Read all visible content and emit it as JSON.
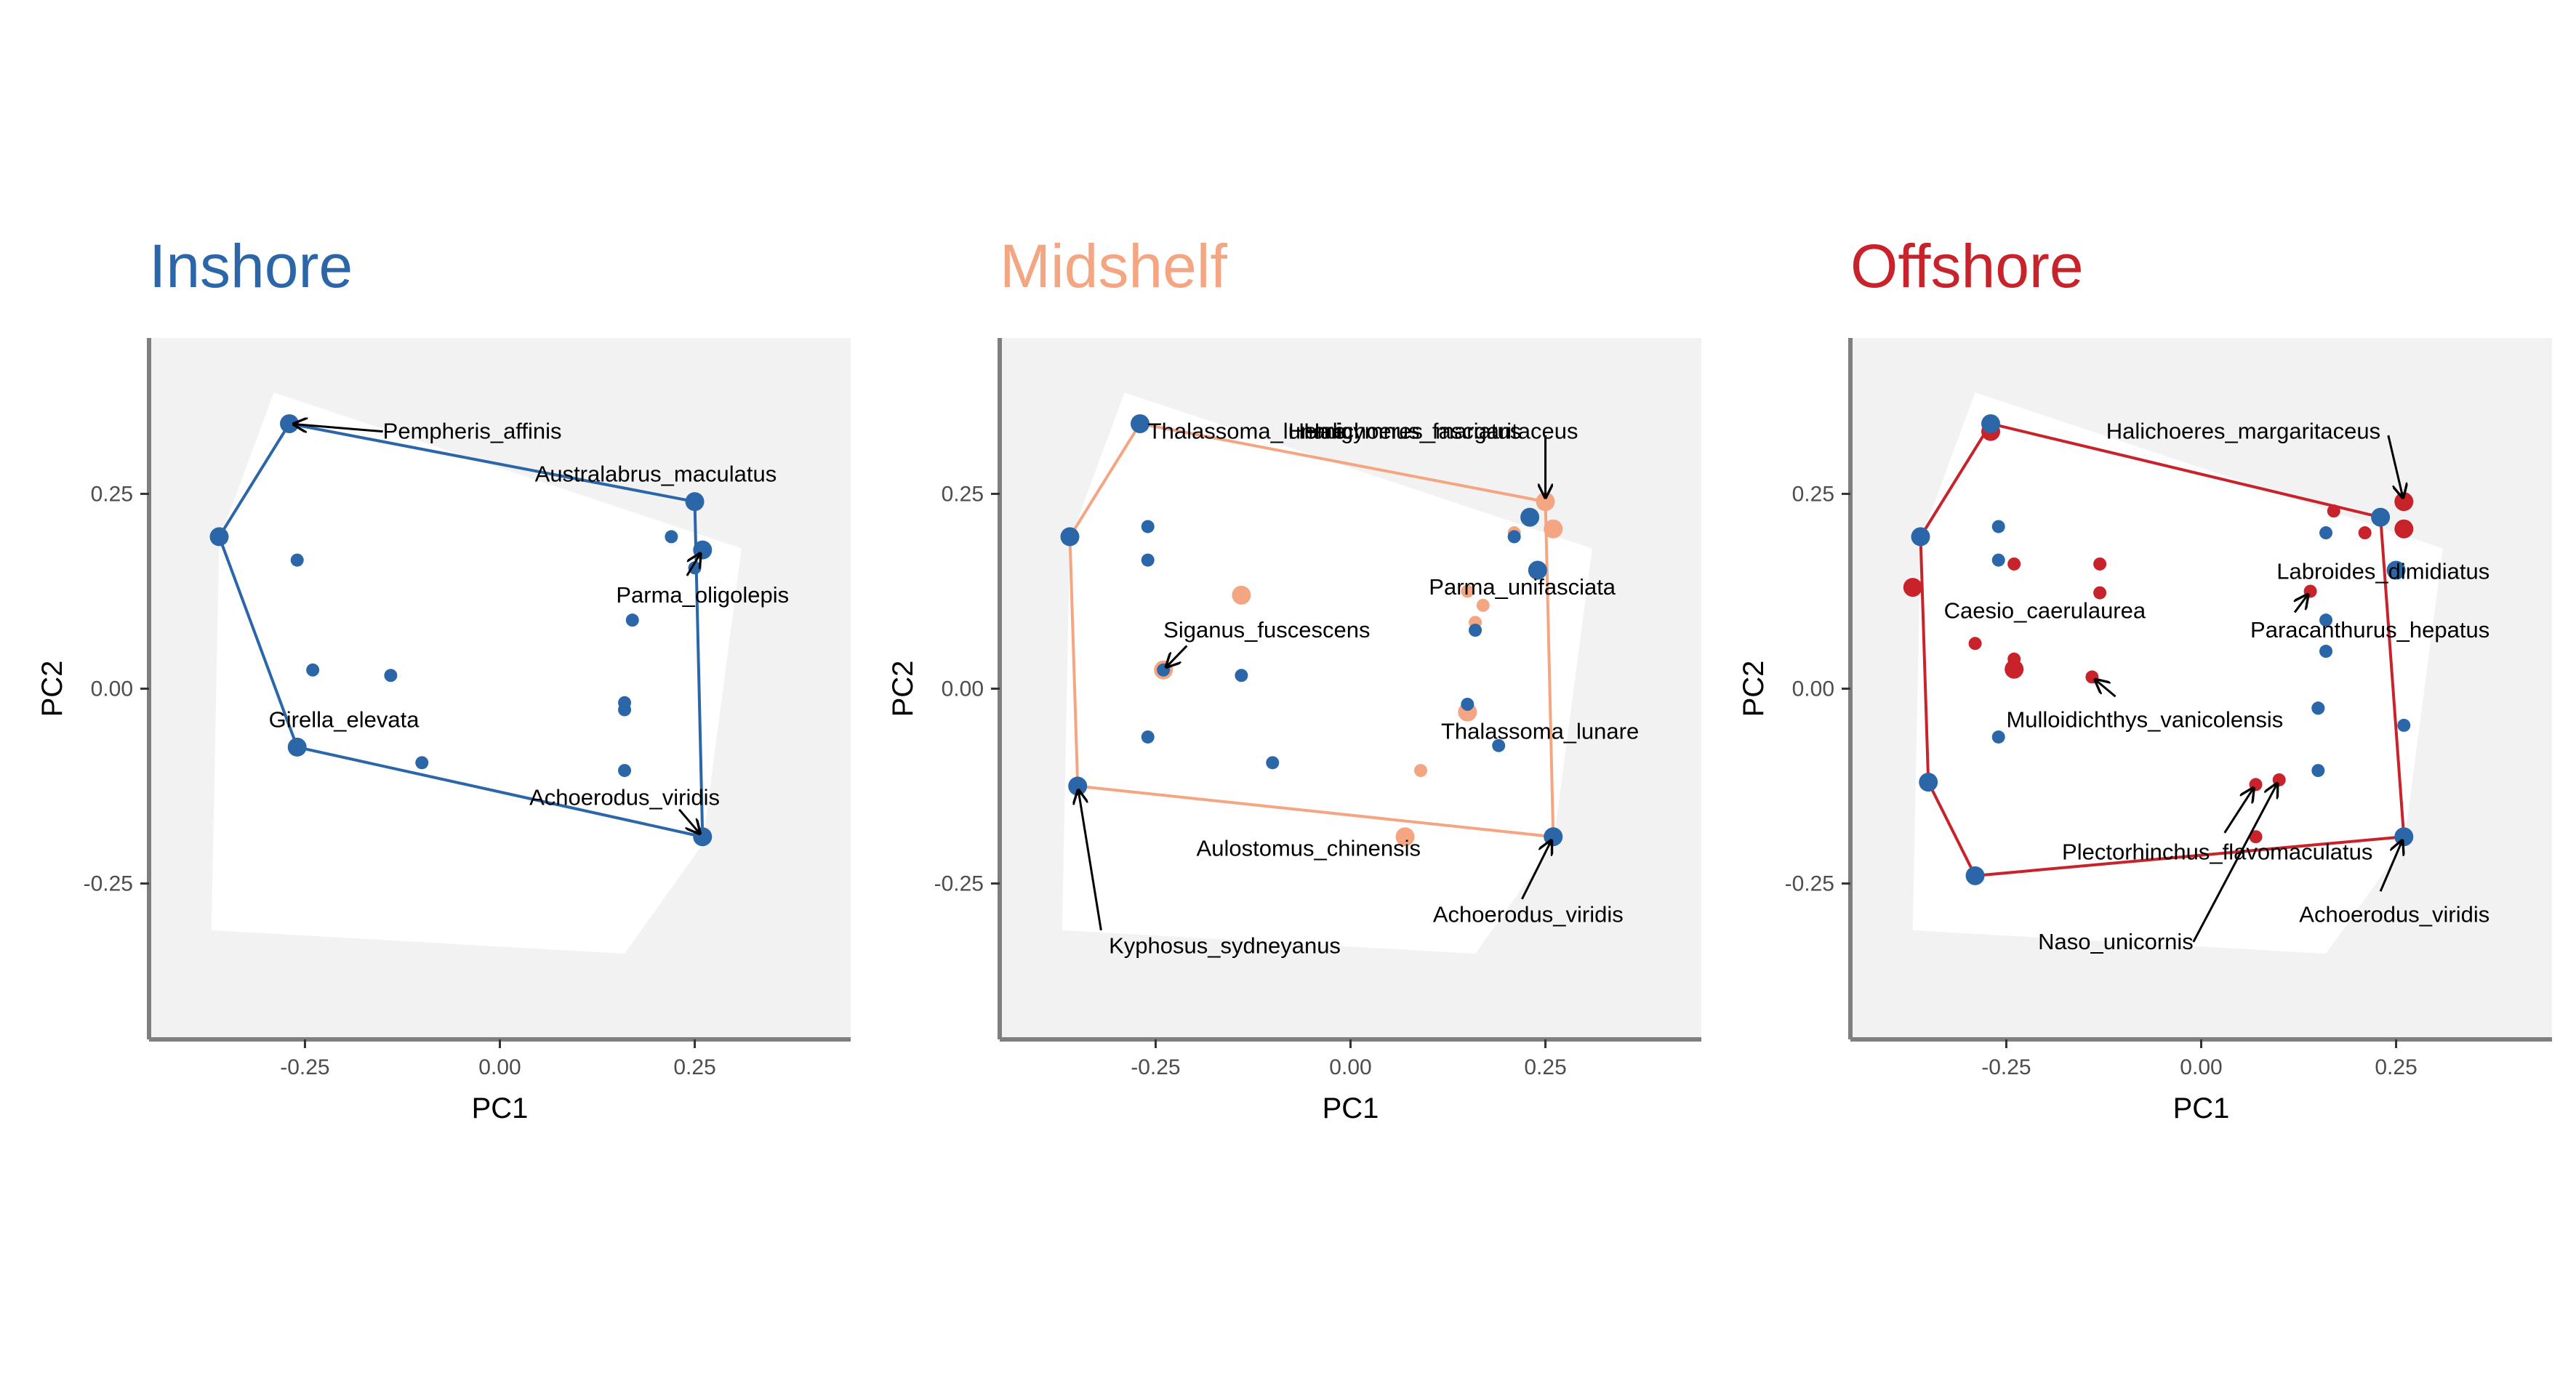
{
  "colors": {
    "inshore": "#2b66a8",
    "midshelf": "#f4a582",
    "offshore": "#c8232b",
    "points_inshore": "#2b66a8",
    "panel_bg": "#f2f2f2",
    "background_hull": "#ffffff",
    "axis_line": "#7f7f7f"
  },
  "chart_data": [
    {
      "type": "scatter",
      "title": "Inshore",
      "title_color": "#2b66a8",
      "hull_color": "#2b66a8",
      "xlabel": "PC1",
      "ylabel": "PC2",
      "xlim": [
        -0.45,
        0.45
      ],
      "ylim": [
        -0.45,
        0.45
      ],
      "xticks": [
        -0.25,
        0.0,
        0.25
      ],
      "xtick_labels": [
        "-0.25",
        "0.00",
        "0.25"
      ],
      "yticks": [
        -0.25,
        0.0,
        0.25
      ],
      "ytick_labels": [
        "-0.25",
        "0.00",
        "0.25"
      ],
      "grid": false,
      "background_hull": [
        [
          -0.29,
          0.38
        ],
        [
          0.31,
          0.18
        ],
        [
          0.26,
          -0.2
        ],
        [
          0.16,
          -0.34
        ],
        [
          -0.37,
          -0.31
        ],
        [
          -0.36,
          0.19
        ]
      ],
      "zone_hull": [
        [
          -0.27,
          0.34
        ],
        [
          0.25,
          0.24
        ],
        [
          0.26,
          -0.19
        ],
        [
          -0.26,
          -0.075
        ],
        [
          -0.36,
          0.195
        ]
      ],
      "points": [
        {
          "x": -0.27,
          "y": 0.34,
          "group": "inshore",
          "size": "large"
        },
        {
          "x": 0.25,
          "y": 0.24,
          "group": "inshore",
          "size": "large"
        },
        {
          "x": -0.36,
          "y": 0.195,
          "group": "inshore",
          "size": "large"
        },
        {
          "x": 0.26,
          "y": 0.178,
          "group": "inshore",
          "size": "large"
        },
        {
          "x": 0.26,
          "y": -0.19,
          "group": "inshore",
          "size": "large"
        },
        {
          "x": -0.26,
          "y": -0.075,
          "group": "inshore",
          "size": "large"
        },
        {
          "x": 0.22,
          "y": 0.195,
          "group": "inshore",
          "size": "small"
        },
        {
          "x": -0.26,
          "y": 0.165,
          "group": "inshore",
          "size": "small"
        },
        {
          "x": 0.25,
          "y": 0.155,
          "group": "inshore",
          "size": "small"
        },
        {
          "x": 0.17,
          "y": 0.088,
          "group": "inshore",
          "size": "small"
        },
        {
          "x": -0.24,
          "y": 0.024,
          "group": "inshore",
          "size": "small"
        },
        {
          "x": -0.14,
          "y": 0.017,
          "group": "inshore",
          "size": "small"
        },
        {
          "x": 0.16,
          "y": -0.018,
          "group": "inshore",
          "size": "small"
        },
        {
          "x": 0.16,
          "y": -0.027,
          "group": "inshore",
          "size": "small"
        },
        {
          "x": -0.1,
          "y": -0.095,
          "group": "inshore",
          "size": "small"
        },
        {
          "x": 0.16,
          "y": -0.105,
          "group": "inshore",
          "size": "small"
        }
      ],
      "labels": [
        {
          "text": "Pempheris_affinis",
          "x": -0.15,
          "y": 0.33,
          "anchor": "start",
          "arrow_to": [
            -0.27,
            0.34
          ]
        },
        {
          "text": "Australabrus_maculatus",
          "x": 0.2,
          "y": 0.275,
          "anchor": "middle"
        },
        {
          "text": "Parma_oligolepis",
          "x": 0.26,
          "y": 0.12,
          "anchor": "middle",
          "arrow_from": [
            0.24,
            0.145
          ],
          "arrow_to": [
            0.26,
            0.178
          ]
        },
        {
          "text": "Girella_elevata",
          "x": -0.2,
          "y": -0.04,
          "anchor": "middle"
        },
        {
          "text": "Achoerodus_viridis",
          "x": 0.16,
          "y": -0.14,
          "anchor": "middle",
          "arrow_from": [
            0.23,
            -0.155
          ],
          "arrow_to": [
            0.26,
            -0.19
          ]
        }
      ]
    },
    {
      "type": "scatter",
      "title": "Midshelf",
      "title_color": "#f4a582",
      "hull_color": "#f4a582",
      "xlabel": "PC1",
      "ylabel": "PC2",
      "xlim": [
        -0.45,
        0.45
      ],
      "ylim": [
        -0.45,
        0.45
      ],
      "xticks": [
        -0.25,
        0.0,
        0.25
      ],
      "xtick_labels": [
        "-0.25",
        "0.00",
        "0.25"
      ],
      "yticks": [
        -0.25,
        0.0,
        0.25
      ],
      "ytick_labels": [
        "-0.25",
        "0.00",
        "0.25"
      ],
      "grid": false,
      "background_hull": [
        [
          -0.29,
          0.38
        ],
        [
          0.31,
          0.18
        ],
        [
          0.26,
          -0.2
        ],
        [
          0.16,
          -0.34
        ],
        [
          -0.37,
          -0.31
        ],
        [
          -0.36,
          0.19
        ]
      ],
      "zone_hull": [
        [
          -0.27,
          0.34
        ],
        [
          0.25,
          0.24
        ],
        [
          0.26,
          -0.19
        ],
        [
          -0.35,
          -0.125
        ],
        [
          -0.36,
          0.195
        ]
      ],
      "points": [
        {
          "x": 0.25,
          "y": 0.24,
          "group": "midshelf",
          "size": "large"
        },
        {
          "x": 0.26,
          "y": 0.205,
          "group": "midshelf",
          "size": "large"
        },
        {
          "x": 0.21,
          "y": 0.2,
          "group": "midshelf",
          "size": "small"
        },
        {
          "x": -0.14,
          "y": 0.12,
          "group": "midshelf",
          "size": "large"
        },
        {
          "x": 0.15,
          "y": 0.125,
          "group": "midshelf",
          "size": "small"
        },
        {
          "x": 0.17,
          "y": 0.107,
          "group": "midshelf",
          "size": "small"
        },
        {
          "x": 0.16,
          "y": 0.085,
          "group": "midshelf",
          "size": "small"
        },
        {
          "x": -0.24,
          "y": 0.024,
          "group": "midshelf",
          "size": "large"
        },
        {
          "x": 0.15,
          "y": -0.03,
          "group": "midshelf",
          "size": "large"
        },
        {
          "x": 0.09,
          "y": -0.105,
          "group": "midshelf",
          "size": "small"
        },
        {
          "x": 0.07,
          "y": -0.19,
          "group": "midshelf",
          "size": "large"
        },
        {
          "x": -0.27,
          "y": 0.34,
          "group": "inshore",
          "size": "large"
        },
        {
          "x": 0.23,
          "y": 0.22,
          "group": "inshore",
          "size": "large"
        },
        {
          "x": -0.36,
          "y": 0.195,
          "group": "inshore",
          "size": "large"
        },
        {
          "x": 0.24,
          "y": 0.152,
          "group": "inshore",
          "size": "large"
        },
        {
          "x": -0.35,
          "y": -0.125,
          "group": "inshore",
          "size": "large"
        },
        {
          "x": 0.26,
          "y": -0.19,
          "group": "inshore",
          "size": "large"
        },
        {
          "x": -0.26,
          "y": 0.208,
          "group": "inshore",
          "size": "small"
        },
        {
          "x": -0.26,
          "y": 0.165,
          "group": "inshore",
          "size": "small"
        },
        {
          "x": 0.21,
          "y": 0.195,
          "group": "inshore",
          "size": "small"
        },
        {
          "x": 0.16,
          "y": 0.075,
          "group": "inshore",
          "size": "small"
        },
        {
          "x": -0.24,
          "y": 0.024,
          "group": "inshore",
          "size": "small"
        },
        {
          "x": -0.14,
          "y": 0.017,
          "group": "inshore",
          "size": "small"
        },
        {
          "x": 0.15,
          "y": -0.02,
          "group": "inshore",
          "size": "small"
        },
        {
          "x": -0.26,
          "y": -0.062,
          "group": "inshore",
          "size": "small"
        },
        {
          "x": 0.19,
          "y": -0.073,
          "group": "inshore",
          "size": "small"
        },
        {
          "x": -0.1,
          "y": -0.095,
          "group": "inshore",
          "size": "small"
        }
      ],
      "labels": [
        {
          "text": "Thalassoma_lunare",
          "x": -0.26,
          "y": 0.33,
          "anchor": "start"
        },
        {
          "text": "Hemigymnus_fasciatus",
          "x": -0.08,
          "y": 0.33,
          "anchor": "start"
        },
        {
          "text": "Halichoeres_margaritaceus",
          "x": -0.06,
          "y": 0.33,
          "anchor": "start",
          "arrow_from": [
            0.25,
            0.325
          ],
          "arrow_to": [
            0.25,
            0.24
          ]
        },
        {
          "text": "Siganus_fuscescens",
          "x": -0.24,
          "y": 0.075,
          "anchor": "start",
          "arrow_from": [
            -0.21,
            0.055
          ],
          "arrow_to": [
            -0.24,
            0.024
          ]
        },
        {
          "text": "Parma_unifasciata",
          "x": 0.34,
          "y": 0.13,
          "anchor": "end"
        },
        {
          "text": "Thalassoma_lunare",
          "x": 0.37,
          "y": -0.055,
          "anchor": "end"
        },
        {
          "text": "Aulostomus_chinensis",
          "x": 0.09,
          "y": -0.205,
          "anchor": "end"
        },
        {
          "text": "Achoerodus_viridis",
          "x": 0.35,
          "y": -0.29,
          "anchor": "end",
          "arrow_from": [
            0.22,
            -0.27
          ],
          "arrow_to": [
            0.26,
            -0.19
          ]
        },
        {
          "text": "Kyphosus_sydneyanus",
          "x": -0.31,
          "y": -0.33,
          "anchor": "start",
          "arrow_from": [
            -0.32,
            -0.31
          ],
          "arrow_to": [
            -0.35,
            -0.125
          ]
        }
      ]
    },
    {
      "type": "scatter",
      "title": "Offshore",
      "title_color": "#c8232b",
      "hull_color": "#c8232b",
      "xlabel": "PC1",
      "ylabel": "PC2",
      "xlim": [
        -0.45,
        0.45
      ],
      "ylim": [
        -0.45,
        0.45
      ],
      "xticks": [
        -0.25,
        0.0,
        0.25
      ],
      "xtick_labels": [
        "-0.25",
        "0.00",
        "0.25"
      ],
      "yticks": [
        -0.25,
        0.0,
        0.25
      ],
      "ytick_labels": [
        "-0.25",
        "0.00",
        "0.25"
      ],
      "grid": false,
      "background_hull": [
        [
          -0.29,
          0.38
        ],
        [
          0.31,
          0.18
        ],
        [
          0.26,
          -0.2
        ],
        [
          0.16,
          -0.34
        ],
        [
          -0.37,
          -0.31
        ],
        [
          -0.36,
          0.19
        ]
      ],
      "zone_hull": [
        [
          -0.27,
          0.34
        ],
        [
          0.23,
          0.22
        ],
        [
          0.26,
          -0.19
        ],
        [
          -0.29,
          -0.24
        ],
        [
          -0.35,
          -0.12
        ],
        [
          -0.36,
          0.195
        ]
      ],
      "points": [
        {
          "x": -0.27,
          "y": 0.33,
          "group": "offshore",
          "size": "large"
        },
        {
          "x": 0.26,
          "y": 0.24,
          "group": "offshore",
          "size": "large"
        },
        {
          "x": 0.26,
          "y": 0.205,
          "group": "offshore",
          "size": "large"
        },
        {
          "x": 0.17,
          "y": 0.228,
          "group": "offshore",
          "size": "small"
        },
        {
          "x": 0.21,
          "y": 0.2,
          "group": "offshore",
          "size": "small"
        },
        {
          "x": -0.37,
          "y": 0.13,
          "group": "offshore",
          "size": "large"
        },
        {
          "x": -0.24,
          "y": 0.16,
          "group": "offshore",
          "size": "small"
        },
        {
          "x": -0.13,
          "y": 0.16,
          "group": "offshore",
          "size": "small"
        },
        {
          "x": -0.13,
          "y": 0.123,
          "group": "offshore",
          "size": "small"
        },
        {
          "x": 0.14,
          "y": 0.125,
          "group": "offshore",
          "size": "small"
        },
        {
          "x": -0.29,
          "y": 0.058,
          "group": "offshore",
          "size": "small"
        },
        {
          "x": -0.24,
          "y": 0.038,
          "group": "offshore",
          "size": "small"
        },
        {
          "x": -0.24,
          "y": 0.025,
          "group": "offshore",
          "size": "large"
        },
        {
          "x": -0.14,
          "y": 0.015,
          "group": "offshore",
          "size": "small"
        },
        {
          "x": 0.15,
          "y": -0.025,
          "group": "offshore",
          "size": "small"
        },
        {
          "x": 0.07,
          "y": -0.123,
          "group": "offshore",
          "size": "small"
        },
        {
          "x": 0.1,
          "y": -0.117,
          "group": "offshore",
          "size": "small"
        },
        {
          "x": 0.07,
          "y": -0.19,
          "group": "offshore",
          "size": "small"
        },
        {
          "x": -0.27,
          "y": 0.34,
          "group": "inshore",
          "size": "large"
        },
        {
          "x": 0.23,
          "y": 0.22,
          "group": "inshore",
          "size": "large"
        },
        {
          "x": -0.36,
          "y": 0.195,
          "group": "inshore",
          "size": "large"
        },
        {
          "x": 0.25,
          "y": 0.152,
          "group": "inshore",
          "size": "large"
        },
        {
          "x": -0.35,
          "y": -0.12,
          "group": "inshore",
          "size": "large"
        },
        {
          "x": -0.29,
          "y": -0.24,
          "group": "inshore",
          "size": "large"
        },
        {
          "x": 0.26,
          "y": -0.19,
          "group": "inshore",
          "size": "large"
        },
        {
          "x": -0.26,
          "y": 0.208,
          "group": "inshore",
          "size": "small"
        },
        {
          "x": 0.16,
          "y": 0.2,
          "group": "inshore",
          "size": "small"
        },
        {
          "x": -0.26,
          "y": 0.165,
          "group": "inshore",
          "size": "small"
        },
        {
          "x": 0.16,
          "y": 0.088,
          "group": "inshore",
          "size": "small"
        },
        {
          "x": 0.16,
          "y": 0.048,
          "group": "inshore",
          "size": "small"
        },
        {
          "x": 0.15,
          "y": -0.025,
          "group": "inshore",
          "size": "small"
        },
        {
          "x": 0.26,
          "y": -0.047,
          "group": "inshore",
          "size": "small"
        },
        {
          "x": -0.26,
          "y": -0.062,
          "group": "inshore",
          "size": "small"
        },
        {
          "x": 0.15,
          "y": -0.105,
          "group": "inshore",
          "size": "small"
        }
      ],
      "labels": [
        {
          "text": "Halichoeres_margaritaceus",
          "x": 0.23,
          "y": 0.33,
          "anchor": "end",
          "arrow_from": [
            0.24,
            0.325
          ],
          "arrow_to": [
            0.26,
            0.24
          ]
        },
        {
          "text": "Labroides_dimidiatus",
          "x": 0.37,
          "y": 0.15,
          "anchor": "end"
        },
        {
          "text": "Caesio_caerulaurea",
          "x": -0.33,
          "y": 0.1,
          "anchor": "start"
        },
        {
          "text": "Paracanthurus_hepatus",
          "x": 0.37,
          "y": 0.075,
          "anchor": "end",
          "arrow_from": [
            0.12,
            0.098
          ],
          "arrow_to": [
            0.14,
            0.125
          ]
        },
        {
          "text": "Mulloidichthys_vanicolensis",
          "x": -0.25,
          "y": -0.04,
          "anchor": "start",
          "arrow_from": [
            -0.11,
            -0.01
          ],
          "arrow_to": [
            -0.14,
            0.015
          ]
        },
        {
          "text": "Plectorhinchus_flavomaculatus",
          "x": 0.22,
          "y": -0.21,
          "anchor": "end",
          "arrow_from": [
            0.03,
            -0.185
          ],
          "arrow_to": [
            0.07,
            -0.123
          ]
        },
        {
          "text": "Achoerodus_viridis",
          "x": 0.37,
          "y": -0.29,
          "anchor": "end",
          "arrow_from": [
            0.23,
            -0.26
          ],
          "arrow_to": [
            0.26,
            -0.19
          ]
        },
        {
          "text": "Naso_unicornis",
          "x": -0.01,
          "y": -0.325,
          "anchor": "end",
          "arrow_from": [
            -0.01,
            -0.325
          ],
          "arrow_to": [
            0.1,
            -0.117
          ]
        }
      ]
    }
  ]
}
